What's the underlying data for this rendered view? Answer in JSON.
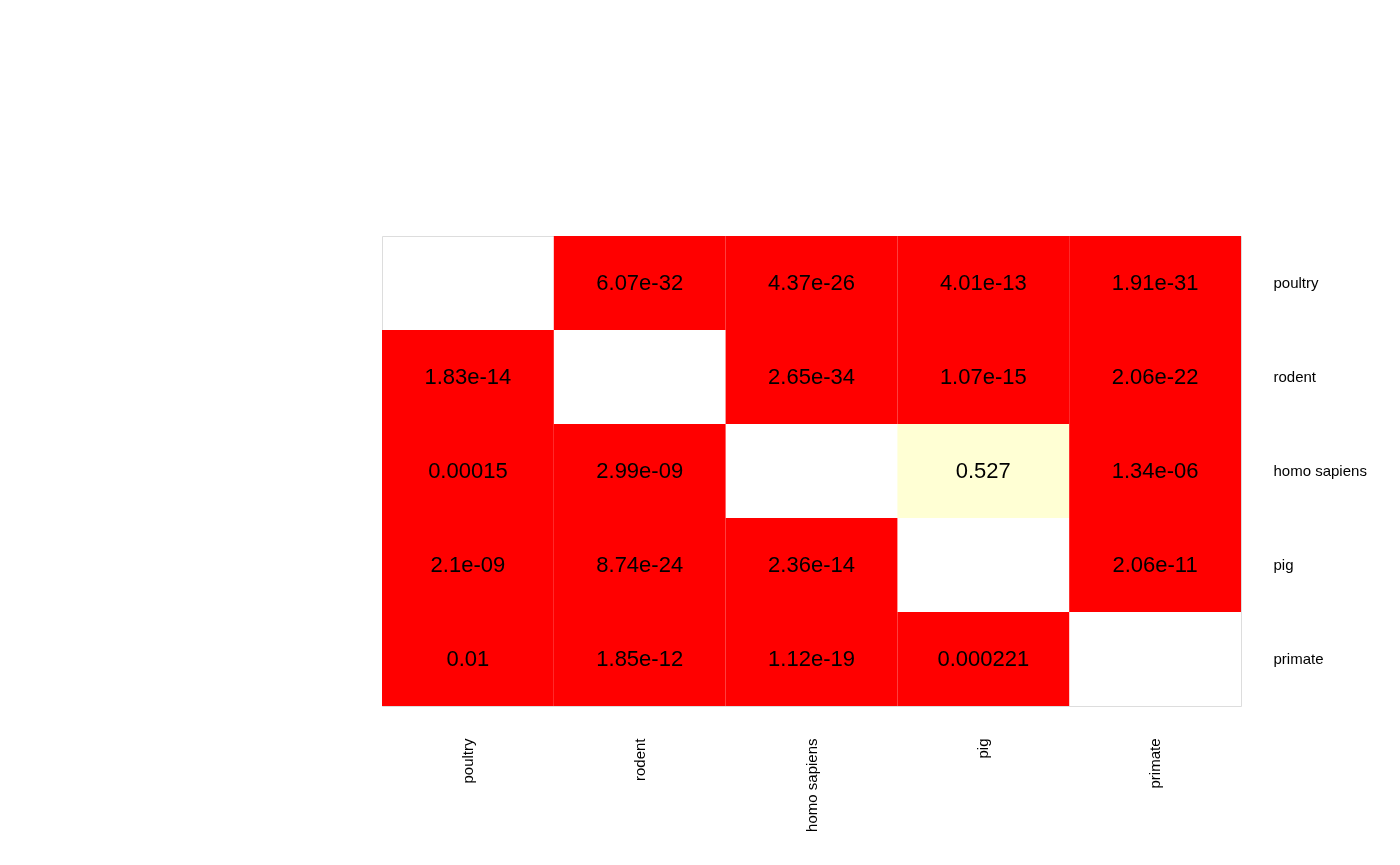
{
  "chart_data": {
    "type": "heatmap",
    "categories": [
      "poultry",
      "rodent",
      "homo sapiens",
      "pig",
      "primate"
    ],
    "y_categories": [
      "poultry",
      "rodent",
      "homo sapiens",
      "pig",
      "primate"
    ],
    "cells": [
      [
        null,
        6.07e-32,
        4.37e-26,
        4.01e-13,
        1.91e-31
      ],
      [
        1.83e-14,
        null,
        2.65e-34,
        1.07e-15,
        2.06e-22
      ],
      [
        0.00015,
        2.99e-09,
        null,
        0.527,
        1.34e-06
      ],
      [
        2.1e-09,
        8.74e-24,
        2.36e-14,
        null,
        2.06e-11
      ],
      [
        0.01,
        1.85e-12,
        1.12e-19,
        0.000221,
        null
      ]
    ],
    "data_labels": true,
    "colors": [
      [
        null,
        "#ff0000",
        "#ff0000",
        "#ff0000",
        "#ff0000"
      ],
      [
        "#ff0000",
        null,
        "#ff0000",
        "#ff0000",
        "#ff0000"
      ],
      [
        "#ff0000",
        "#ff0000",
        null,
        "#ffffd4",
        "#ff0000"
      ],
      [
        "#ff0000",
        "#ff0000",
        "#ff0000",
        null,
        "#ff0000"
      ],
      [
        "#ff0000",
        "#ff0000",
        "#ff0000",
        "#ff0000",
        null
      ]
    ]
  }
}
